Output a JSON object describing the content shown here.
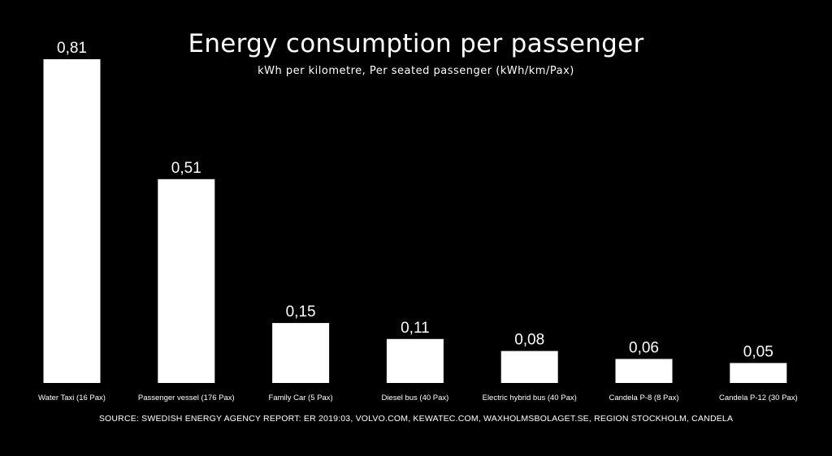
{
  "chart_data": {
    "type": "bar",
    "title": "Energy consumption per passenger",
    "subtitle": "kWh per kilometre, Per seated passenger (kWh/km/Pax)",
    "categories": [
      "Water Taxi (16 Pax)",
      "Passenger vessel (176 Pax)",
      "Family Car (5 Pax)",
      "Diesel bus (40 Pax)",
      "Electric hybrid bus (40 Pax)",
      "Candela P-8 (8 Pax)",
      "Candela P-12 (30 Pax)"
    ],
    "values": [
      0.81,
      0.51,
      0.15,
      0.11,
      0.08,
      0.06,
      0.05
    ],
    "value_labels": [
      "0,81",
      "0,51",
      "0,15",
      "0,11",
      "0,08",
      "0,06",
      "0,05"
    ],
    "ylim": [
      0,
      0.81
    ],
    "grid": false,
    "axes_visible": false,
    "bar_color": "#ffffff",
    "background_color": "#000000",
    "source": "SOURCE: SWEDISH ENERGY AGENCY REPORT: ER 2019:03, VOLVO.COM, KEWATEC.COM, WAXHOLMSBOLAGET.SE, REGION STOCKHOLM, CANDELA"
  }
}
